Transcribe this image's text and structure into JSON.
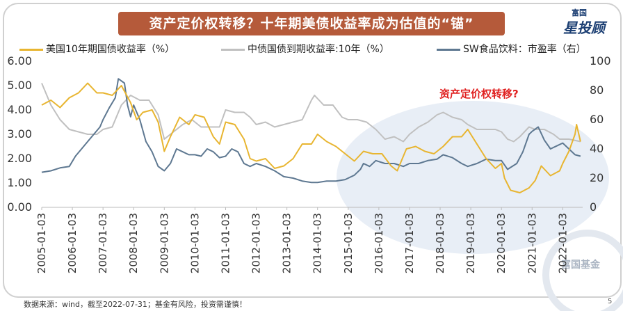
{
  "title": "资产定价权转移？十年期美债收益率成为估值的“锚”",
  "brand": {
    "line1": "富国",
    "line2": "星投顾",
    "watermark": "富国基金"
  },
  "legend": [
    {
      "label": "美国10年期国债收益率（%）",
      "color": "#e8b530"
    },
    {
      "label": "中债国债到期收益率:10年（%）",
      "color": "#c0c0c0"
    },
    {
      "label": "SW食品饮料：市盈率（右）",
      "color": "#5e7891"
    }
  ],
  "footer": "数据来源：wind，截至2022-07-31；基金有风险，投资需谨慎！",
  "page_number": "5",
  "chart_data": {
    "type": "line",
    "annotation": "资产定价权转移?",
    "x_ticks": [
      "2005-01-03",
      "2006-01-03",
      "2007-01-03",
      "2008-01-03",
      "2009-01-03",
      "2010-01-03",
      "2011-01-03",
      "2012-01-03",
      "2013-01-03",
      "2014-01-03",
      "2015-01-03",
      "2016-01-03",
      "2017-01-03",
      "2018-01-03",
      "2019-01-03",
      "2020-01-03",
      "2021-01-03",
      "2022-01-03"
    ],
    "y_left_ticks": [
      "0.00",
      "1.00",
      "2.00",
      "3.00",
      "4.00",
      "5.00",
      "6.00"
    ],
    "y_right_ticks": [
      "0",
      "20",
      "40",
      "60",
      "80",
      "100"
    ],
    "y_left_range": [
      0,
      6
    ],
    "y_right_range": [
      0,
      100
    ],
    "series": [
      {
        "name": "美国10年期国债收益率（%）",
        "axis": "left",
        "color": "#e8b530",
        "x": [
          2005.0,
          2005.3,
          2005.6,
          2005.9,
          2006.2,
          2006.5,
          2006.8,
          2007.0,
          2007.3,
          2007.6,
          2007.9,
          2008.1,
          2008.3,
          2008.6,
          2008.8,
          2009.0,
          2009.2,
          2009.5,
          2009.8,
          2010.0,
          2010.3,
          2010.6,
          2010.8,
          2011.0,
          2011.3,
          2011.6,
          2011.8,
          2012.0,
          2012.3,
          2012.6,
          2012.9,
          2013.2,
          2013.5,
          2013.8,
          2014.0,
          2014.3,
          2014.6,
          2014.9,
          2015.2,
          2015.5,
          2015.8,
          2016.1,
          2016.4,
          2016.6,
          2016.9,
          2017.2,
          2017.5,
          2017.8,
          2018.1,
          2018.4,
          2018.7,
          2018.9,
          2019.2,
          2019.5,
          2019.8,
          2020.0,
          2020.1,
          2020.3,
          2020.6,
          2020.9,
          2021.1,
          2021.3,
          2021.6,
          2021.9,
          2022.0,
          2022.2,
          2022.4,
          2022.45,
          2022.58
        ],
        "y": [
          4.2,
          4.4,
          4.1,
          4.5,
          4.7,
          5.1,
          4.7,
          4.7,
          4.6,
          5.0,
          4.3,
          3.6,
          3.9,
          4.0,
          3.5,
          2.3,
          2.9,
          3.7,
          3.4,
          3.8,
          3.7,
          2.9,
          2.6,
          3.5,
          3.4,
          2.8,
          2.0,
          1.9,
          2.0,
          1.6,
          1.7,
          2.0,
          2.6,
          2.6,
          3.0,
          2.7,
          2.5,
          2.2,
          1.9,
          2.3,
          2.2,
          2.2,
          1.7,
          1.5,
          2.4,
          2.5,
          2.3,
          2.2,
          2.5,
          2.9,
          2.9,
          3.2,
          2.6,
          2.0,
          1.6,
          1.8,
          1.2,
          0.7,
          0.6,
          0.8,
          1.1,
          1.7,
          1.3,
          1.5,
          1.8,
          2.3,
          3.0,
          3.4,
          2.7
        ]
      },
      {
        "name": "中债国债到期收益率:10年（%）",
        "axis": "left",
        "color": "#c0c0c0",
        "x": [
          2005.0,
          2005.3,
          2005.6,
          2005.9,
          2006.2,
          2006.5,
          2006.8,
          2007.0,
          2007.3,
          2007.6,
          2007.9,
          2008.2,
          2008.5,
          2008.8,
          2009.0,
          2009.3,
          2009.6,
          2009.9,
          2010.2,
          2010.5,
          2010.8,
          2011.0,
          2011.3,
          2011.6,
          2011.8,
          2012.0,
          2012.3,
          2012.6,
          2012.9,
          2013.2,
          2013.5,
          2013.8,
          2013.9,
          2014.2,
          2014.5,
          2014.8,
          2015.0,
          2015.3,
          2015.6,
          2015.9,
          2016.2,
          2016.5,
          2016.8,
          2017.0,
          2017.3,
          2017.6,
          2017.9,
          2018.1,
          2018.4,
          2018.7,
          2018.9,
          2019.2,
          2019.5,
          2019.8,
          2020.0,
          2020.2,
          2020.4,
          2020.6,
          2020.9,
          2021.1,
          2021.4,
          2021.7,
          2021.9,
          2022.2,
          2022.58
        ],
        "y": [
          5.1,
          4.2,
          3.6,
          3.2,
          3.1,
          3.0,
          3.0,
          3.2,
          3.3,
          4.2,
          4.6,
          4.4,
          4.4,
          3.8,
          2.8,
          3.1,
          3.4,
          3.6,
          3.3,
          3.3,
          3.3,
          4.0,
          3.9,
          3.9,
          3.7,
          3.4,
          3.5,
          3.3,
          3.4,
          3.5,
          3.6,
          4.4,
          4.6,
          4.2,
          4.2,
          3.7,
          3.6,
          3.6,
          3.5,
          3.2,
          2.8,
          2.9,
          2.7,
          3.0,
          3.3,
          3.5,
          3.8,
          3.9,
          3.7,
          3.6,
          3.4,
          3.2,
          3.2,
          3.2,
          3.1,
          2.8,
          2.7,
          2.9,
          3.3,
          3.2,
          3.2,
          3.0,
          2.8,
          2.8,
          2.7
        ]
      },
      {
        "name": "SW食品饮料：市盈率（右）",
        "axis": "right",
        "color": "#5e7891",
        "x": [
          2005.0,
          2005.3,
          2005.6,
          2005.9,
          2006.1,
          2006.3,
          2006.5,
          2006.7,
          2006.9,
          2007.0,
          2007.2,
          2007.4,
          2007.5,
          2007.7,
          2007.8,
          2007.9,
          2008.0,
          2008.2,
          2008.4,
          2008.6,
          2008.8,
          2009.0,
          2009.2,
          2009.4,
          2009.6,
          2009.8,
          2010.0,
          2010.2,
          2010.4,
          2010.6,
          2010.8,
          2011.0,
          2011.2,
          2011.4,
          2011.6,
          2011.8,
          2012.0,
          2012.3,
          2012.6,
          2012.9,
          2013.2,
          2013.5,
          2013.8,
          2014.0,
          2014.3,
          2014.6,
          2014.9,
          2015.2,
          2015.4,
          2015.5,
          2015.7,
          2015.9,
          2016.2,
          2016.5,
          2016.8,
          2017.0,
          2017.3,
          2017.6,
          2017.9,
          2018.1,
          2018.4,
          2018.7,
          2018.9,
          2019.2,
          2019.5,
          2019.8,
          2020.0,
          2020.2,
          2020.5,
          2020.7,
          2020.9,
          2021.0,
          2021.2,
          2021.4,
          2021.6,
          2021.8,
          2022.0,
          2022.2,
          2022.4,
          2022.58
        ],
        "y": [
          24,
          25,
          27,
          28,
          35,
          40,
          45,
          50,
          55,
          60,
          68,
          75,
          88,
          85,
          70,
          62,
          70,
          60,
          45,
          38,
          28,
          25,
          30,
          40,
          38,
          36,
          36,
          35,
          40,
          38,
          34,
          35,
          40,
          38,
          30,
          28,
          30,
          28,
          25,
          21,
          20,
          18,
          17,
          17,
          18,
          18,
          19,
          22,
          26,
          30,
          28,
          32,
          30,
          30,
          28,
          30,
          30,
          32,
          33,
          36,
          34,
          30,
          28,
          30,
          33,
          32,
          32,
          26,
          30,
          38,
          50,
          52,
          55,
          46,
          40,
          42,
          44,
          40,
          36,
          35
        ]
      }
    ]
  }
}
